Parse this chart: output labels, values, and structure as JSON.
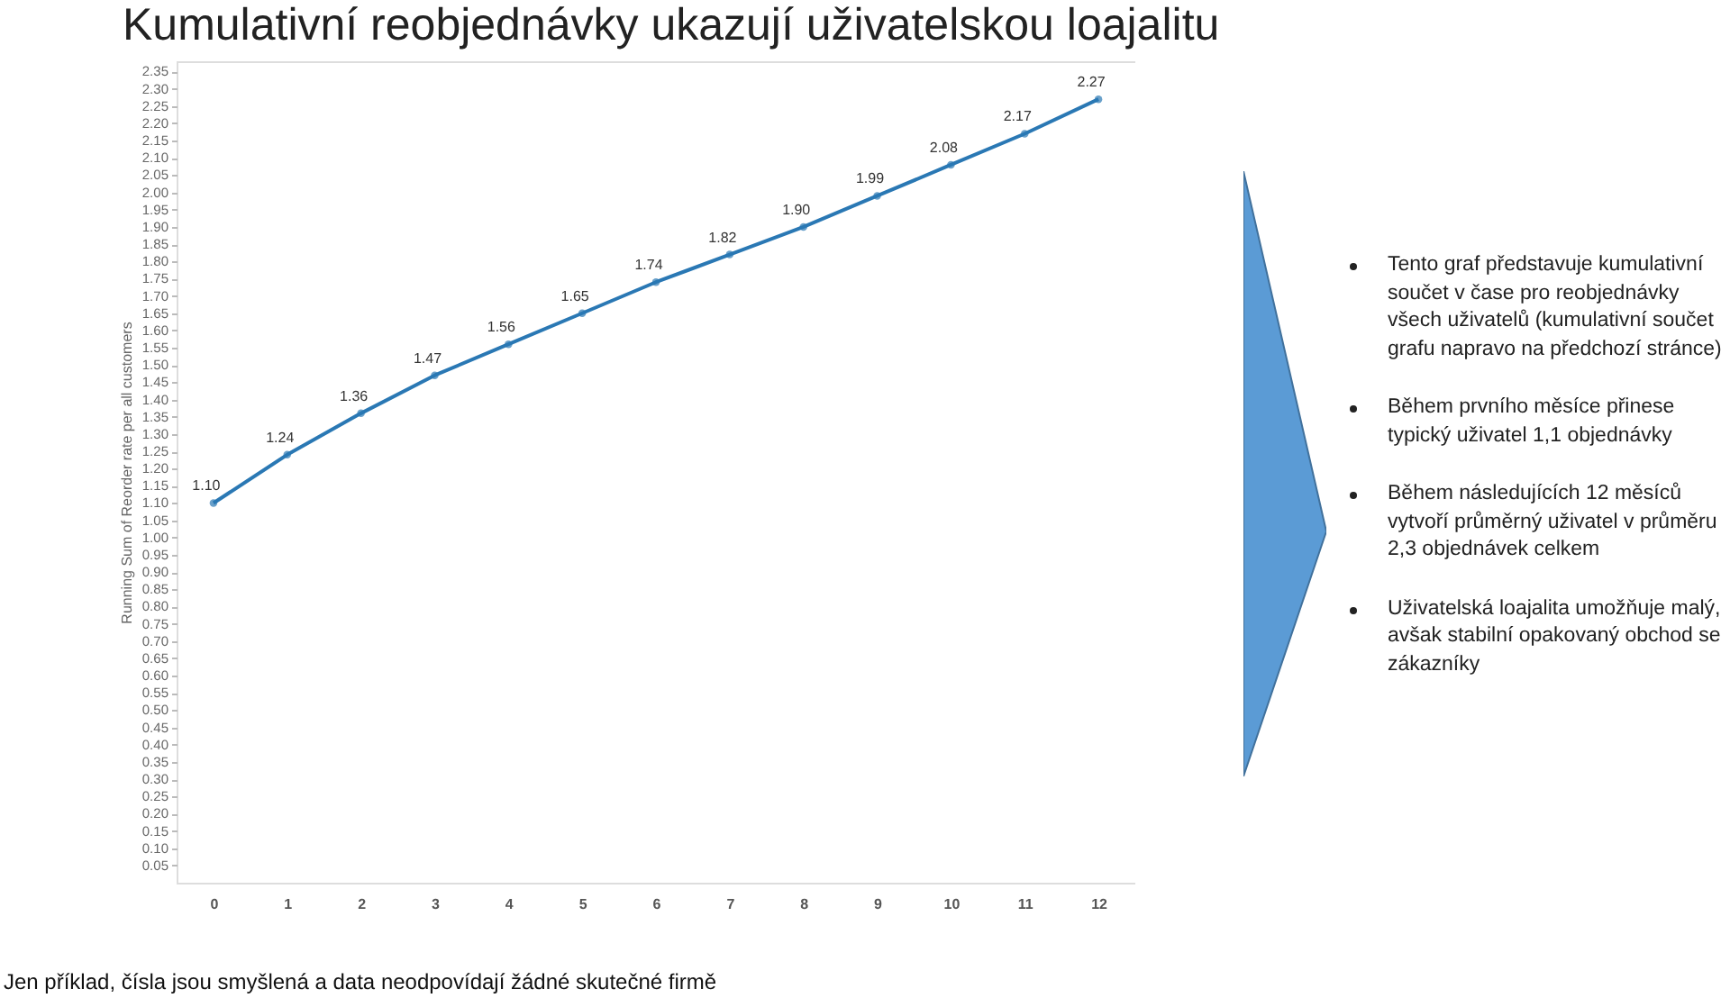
{
  "chart_data": {
    "type": "line",
    "title": "Kumulativní reobjednávky ukazují uživatelskou loajalitu",
    "ylabel": "Running Sum of Reorder rate per all customers",
    "x": [
      0,
      1,
      2,
      3,
      4,
      5,
      6,
      7,
      8,
      9,
      10,
      11,
      12
    ],
    "series": [
      {
        "color": "#2a78b4",
        "values": [
          1.1,
          1.24,
          1.36,
          1.47,
          1.56,
          1.65,
          1.74,
          1.82,
          1.9,
          1.99,
          2.08,
          2.17,
          2.27
        ]
      }
    ],
    "xlim": [
      -0.5,
      12.5
    ],
    "xticks": [
      0,
      1,
      2,
      3,
      4,
      5,
      6,
      7,
      8,
      9,
      10,
      11,
      12
    ],
    "ylim": [
      0,
      2.38
    ],
    "yticks": [
      {
        "value": 0.05,
        "label": "0.05"
      },
      {
        "value": 0.1,
        "label": "0.10"
      },
      {
        "value": 0.15,
        "label": "0.15"
      },
      {
        "value": 0.2,
        "label": "0.20"
      },
      {
        "value": 0.25,
        "label": "0.25"
      },
      {
        "value": 0.3,
        "label": "0.30"
      },
      {
        "value": 0.35,
        "label": "0.35"
      },
      {
        "value": 0.4,
        "label": "0.40"
      },
      {
        "value": 0.45,
        "label": "0.45"
      },
      {
        "value": 0.5,
        "label": "0.50"
      },
      {
        "value": 0.55,
        "label": "0.55"
      },
      {
        "value": 0.6,
        "label": "0.60"
      },
      {
        "value": 0.65,
        "label": "0.65"
      },
      {
        "value": 0.7,
        "label": "0.70"
      },
      {
        "value": 0.75,
        "label": "0.75"
      },
      {
        "value": 0.8,
        "label": "0.80"
      },
      {
        "value": 0.85,
        "label": "0.85"
      },
      {
        "value": 0.9,
        "label": "0.90"
      },
      {
        "value": 0.95,
        "label": "0.95"
      },
      {
        "value": 1.0,
        "label": "1.00"
      },
      {
        "value": 1.05,
        "label": "1.05"
      },
      {
        "value": 1.1,
        "label": "1.10"
      },
      {
        "value": 1.15,
        "label": "1.15"
      },
      {
        "value": 1.2,
        "label": "1.20"
      },
      {
        "value": 1.25,
        "label": "1.25"
      },
      {
        "value": 1.3,
        "label": "1.30"
      },
      {
        "value": 1.35,
        "label": "1.35"
      },
      {
        "value": 1.4,
        "label": "1.40"
      },
      {
        "value": 1.45,
        "label": "1.45"
      },
      {
        "value": 1.5,
        "label": "1.50"
      },
      {
        "value": 1.55,
        "label": "1.55"
      },
      {
        "value": 1.6,
        "label": "1.60"
      },
      {
        "value": 1.65,
        "label": "1.65"
      },
      {
        "value": 1.7,
        "label": "1.70"
      },
      {
        "value": 1.75,
        "label": "1.75"
      },
      {
        "value": 1.8,
        "label": "1.80"
      },
      {
        "value": 1.85,
        "label": "1.85"
      },
      {
        "value": 1.9,
        "label": "1.90"
      },
      {
        "value": 1.95,
        "label": "1.95"
      },
      {
        "value": 2.0,
        "label": "2.00"
      },
      {
        "value": 2.05,
        "label": "2.05"
      },
      {
        "value": 2.1,
        "label": "2.10"
      },
      {
        "value": 2.15,
        "label": "2.15"
      },
      {
        "value": 2.2,
        "label": "2.20"
      },
      {
        "value": 2.25,
        "label": "2.25"
      },
      {
        "value": 2.3,
        "label": "2.30"
      },
      {
        "value": 2.35,
        "label": "2.35"
      }
    ],
    "value_labels": [
      "1.10",
      "1.24",
      "1.36",
      "1.47",
      "1.56",
      "1.65",
      "1.74",
      "1.82",
      "1.90",
      "1.99",
      "2.08",
      "2.17",
      "2.27"
    ],
    "marker": "circle",
    "grid": false,
    "legend": false,
    "annotations": [
      "Tento graf představuje kumulativní součet v čase pro reobjednávky všech uživatelů (kumulativní součet grafu napravo na předchozí stránce)",
      "Během prvního měsíce přinese typický uživatel 1,1 objednávky",
      "Během následujících 12 měsíců vytvoří průměrný uživatel v průměru 2,3 objednávek celkem",
      "Uživatelská loajalita umožňuje malý, avšak stabilní opakovaný obchod se zákazníky",
      "Jen příklad, čísla jsou smyšlená a data neodpovídají žádné skutečné firmě"
    ]
  }
}
